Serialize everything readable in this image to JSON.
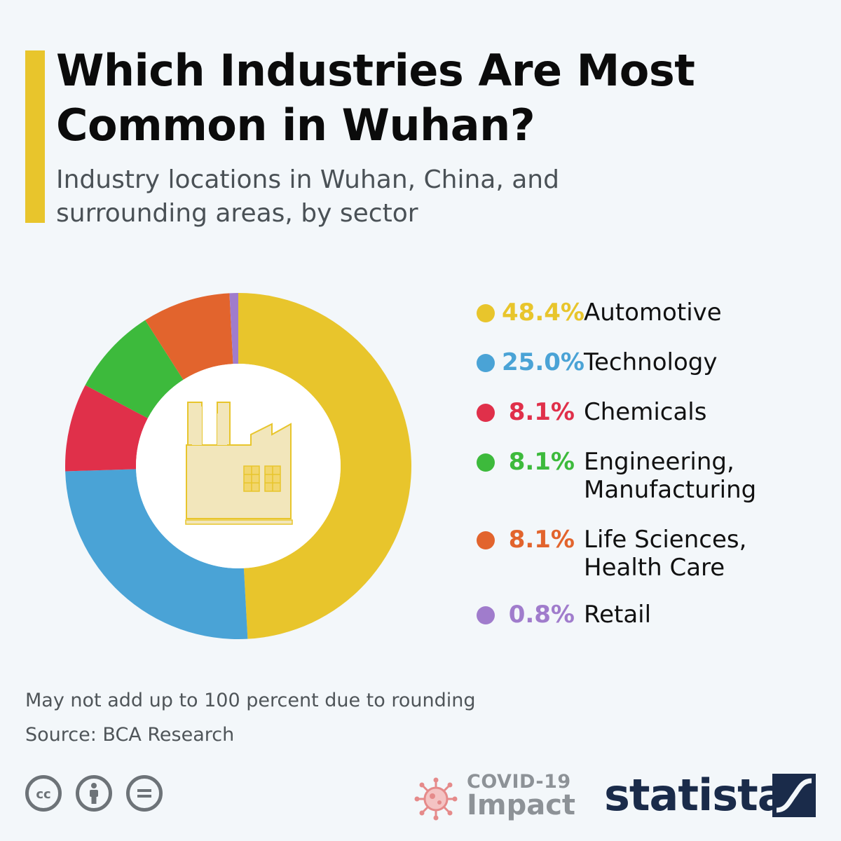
{
  "header": {
    "title": "Which Industries Are Most Common in Wuhan?",
    "subtitle": "Industry locations in Wuhan, China, and surrounding areas, by sector"
  },
  "chart_data": {
    "type": "pie",
    "title": "Which Industries Are Most Common in Wuhan?",
    "subtitle": "Industry locations in Wuhan, China, and surrounding areas, by sector",
    "categories": [
      "Automotive",
      "Technology",
      "Chemicals",
      "Engineering, Manufacturing",
      "Life Sciences, Health Care",
      "Retail"
    ],
    "values": [
      48.4,
      25.0,
      8.1,
      8.1,
      8.1,
      0.8
    ],
    "value_labels": [
      "48.4%",
      "25.0%",
      "8.1%",
      "8.1%",
      "8.1%",
      "0.8%"
    ],
    "label_lines": [
      [
        "Automotive"
      ],
      [
        "Technology"
      ],
      [
        "Chemicals"
      ],
      [
        "Engineering,",
        "Manufacturing"
      ],
      [
        "Life Sciences,",
        "Health Care"
      ],
      [
        "Retail"
      ]
    ],
    "colors": [
      "#e8c52c",
      "#4aa3d6",
      "#e0304a",
      "#3dba3c",
      "#e2642d",
      "#a07ccc"
    ],
    "style": "donut",
    "legend_position": "right",
    "center_icon": "factory-icon"
  },
  "footer": {
    "note": "May not add up to 100 percent due to rounding",
    "source": "Source: BCA Research",
    "license_icons": [
      "creative-commons-icon",
      "attribution-icon",
      "no-derivatives-icon"
    ],
    "covid_line1": "COVID-19",
    "covid_line2": "Impact",
    "covid_icon": "virus-icon",
    "brand": "statista",
    "brand_icon": "statista-logo-icon"
  }
}
